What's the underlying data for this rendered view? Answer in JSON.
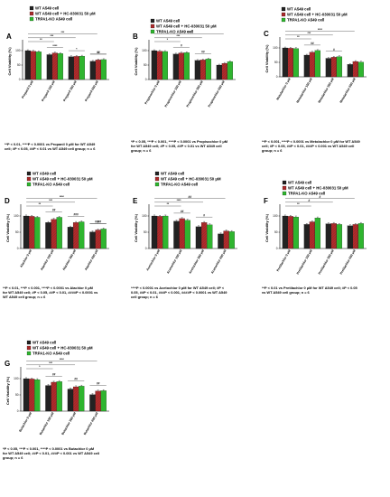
{
  "figure": {
    "colors": {
      "wt": "#222222",
      "hc": "#c0202a",
      "ko": "#2fb52f",
      "wt_hatch": "#5a4b2b",
      "axis": "#000000"
    },
    "legend_labels": [
      "WT A549 cell",
      "WT A549 cell + HC-030031 50 μM",
      "TRPA1-KO A549 cell"
    ]
  },
  "chart_data": [
    {
      "panel": "A",
      "type": "bar",
      "ylabel": "Cell Viability (%)",
      "ylim": [
        0,
        125
      ],
      "yticks": [
        0,
        50,
        100
      ],
      "categories": [
        "Propanil 0 μM",
        "Propanil 150 μM",
        "Propanil 300 μM",
        "Propanil 600 μM"
      ],
      "series": [
        {
          "name": "WT A549 cell",
          "values": [
            100,
            86,
            79,
            63
          ]
        },
        {
          "name": "WT A549 cell + HC-030031 50 μM",
          "values": [
            98,
            92,
            80,
            68
          ]
        },
        {
          "name": "TRPA1-KO A549 cell",
          "values": [
            96,
            90,
            81,
            69
          ]
        }
      ],
      "sig_labels": [
        "**",
        "***",
        "***",
        "****",
        "*",
        "#",
        "##"
      ],
      "caption": "**P < 0.01, ****P < 0.0001 vs Propanil 0 μM for WT A549 cell; #P < 0.05, ##P < 0.01 vs WT A549 cell group; n = 6"
    },
    {
      "panel": "B",
      "type": "bar",
      "ylabel": "Cell Viability (%)",
      "ylim": [
        0,
        125
      ],
      "yticks": [
        0,
        50,
        100
      ],
      "categories": [
        "Propisochlor 0 μM",
        "Propisochlor 150 μM",
        "Propisochlor 300 μM",
        "Propisochlor 600 μM"
      ],
      "series": [
        {
          "name": "WT A549 cell",
          "values": [
            100,
            88,
            66,
            50
          ]
        },
        {
          "name": "WT A549 cell + HC-030031 50 μM",
          "values": [
            98,
            92,
            68,
            56
          ]
        },
        {
          "name": "TRPA1-KO A549 cell",
          "values": [
            97,
            93,
            71,
            62
          ]
        }
      ],
      "sig_labels": [
        "*",
        "***",
        "****",
        "#",
        "##"
      ],
      "caption": "*P < 0.05, ***P < 0.001, ****P < 0.0001 vs Propisochlor 0 μM for WT A549 cell; #P < 0.05, ##P < 0.01 vs WT A549 cell group; n = 6"
    },
    {
      "panel": "C",
      "type": "bar",
      "ylabel": "Cell Viability (%)",
      "ylim": [
        0,
        125
      ],
      "yticks": [
        0,
        50,
        100
      ],
      "categories": [
        "Metolachlor 0 μM",
        "Metolachlor 150 μM",
        "Metolachlor 300 μM",
        "Metolachlor 600 μM"
      ],
      "series": [
        {
          "name": "WT A549 cell",
          "values": [
            100,
            75,
            64,
            43
          ]
        },
        {
          "name": "WT A549 cell + HC-030031 50 μM",
          "values": [
            99,
            85,
            68,
            53
          ]
        },
        {
          "name": "TRPA1-KO A549 cell",
          "values": [
            98,
            91,
            70,
            51
          ]
        }
      ],
      "sig_labels": [
        "**",
        "***",
        "****",
        "##",
        "#"
      ],
      "caption": "**P < 0.001, ****P < 0.0001 vs Metolachlor 0 μM for WT A549 cell; #P < 0.05, ##P < 0.01, ###P < 0.001 vs WT A549 cell group; n = 6"
    },
    {
      "panel": "D",
      "type": "bar",
      "ylabel": "Cell Viability (%)",
      "ylim": [
        0,
        125
      ],
      "yticks": [
        0,
        50,
        100
      ],
      "categories": [
        "Alachlor 0 μM",
        "Alachlor 150 μM",
        "Alachlor 300 μM",
        "Alachlor 600 μM"
      ],
      "series": [
        {
          "name": "WT A549 cell",
          "values": [
            100,
            80,
            66,
            51
          ]
        },
        {
          "name": "WT A549 cell + HC-030031 50 μM",
          "values": [
            99,
            90,
            80,
            57
          ]
        },
        {
          "name": "TRPA1-KO A549 cell",
          "values": [
            96,
            96,
            82,
            60
          ]
        }
      ],
      "sig_labels": [
        "**",
        "***",
        "****",
        "##",
        "###",
        "####",
        "#"
      ],
      "caption": "**P < 0.01, ***P < 0.001, ****P < 0.0001 vs Alachlor 0 μM for WT A549 cell; #P < 0.05, ##P < 0.01, ####P < 0.0001 vs WT A549 cell group; n = 6"
    },
    {
      "panel": "E",
      "type": "bar",
      "ylabel": "Cell Viability (%)",
      "ylim": [
        0,
        125
      ],
      "yticks": [
        0,
        50,
        100
      ],
      "categories": [
        "Acetochlor 0 μM",
        "Acetochlor 150 μM",
        "Acetochlor 300 μM",
        "Acetochlor 600 μM"
      ],
      "series": [
        {
          "name": "WT A549 cell",
          "values": [
            100,
            84,
            67,
            45
          ]
        },
        {
          "name": "WT A549 cell + HC-030031 50 μM",
          "values": [
            99,
            92,
            80,
            54
          ]
        },
        {
          "name": "TRPA1-KO A549 cell",
          "values": [
            100,
            87,
            73,
            52
          ]
        }
      ],
      "sig_labels": [
        "**",
        "****",
        "##",
        "##",
        "#"
      ],
      "caption": "****P < 0.0001 vs Acetochlor 0 μM for WT A549 cell; #P < 0.05, ##P < 0.01, ###P < 0.001, ####P < 0.0001 vs WT A549 cell group; n = 6"
    },
    {
      "panel": "F",
      "type": "bar",
      "ylabel": "Cell Viability (%)",
      "ylim": [
        0,
        125
      ],
      "yticks": [
        0,
        50,
        100
      ],
      "categories": [
        "Pretilachlor 0 μM",
        "Pretilachlor 150 μM",
        "Pretilachlor 300 μM",
        "Pretilachlor 600 μM"
      ],
      "series": [
        {
          "name": "WT A549 cell",
          "values": [
            100,
            74,
            76,
            70
          ]
        },
        {
          "name": "WT A549 cell + HC-030031 50 μM",
          "values": [
            99,
            82,
            77,
            74
          ]
        },
        {
          "name": "TRPA1-KO A549 cell",
          "values": [
            97,
            94,
            74,
            77
          ]
        }
      ],
      "sig_labels": [
        "**",
        "#",
        "#"
      ],
      "caption": "**P < 0.01 vs Pretilachlor 0 μM for WT A549 cell; #P < 0.05 vs WT A549 cell group; n = 6"
    },
    {
      "panel": "G",
      "type": "bar",
      "ylabel": "Cell Viability (%)",
      "ylim": [
        0,
        125
      ],
      "yticks": [
        0,
        50,
        100
      ],
      "categories": [
        "Butachlor 0 μM",
        "Butachlor 150 μM",
        "Butachlor 300 μM",
        "Butachlor 600 μM"
      ],
      "series": [
        {
          "name": "WT A549 cell",
          "values": [
            100,
            79,
            68,
            51
          ]
        },
        {
          "name": "WT A549 cell + HC-030031 50 μM",
          "values": [
            99,
            89,
            75,
            62
          ]
        },
        {
          "name": "TRPA1-KO A549 cell",
          "values": [
            97,
            91,
            77,
            63
          ]
        }
      ],
      "sig_labels": [
        "*",
        "***",
        "****",
        "##",
        "##",
        "##"
      ],
      "caption": "*P < 0.05, ***P < 0.001, ****P < 0.0001 vs Butachlor 0 μM for WT A549 cell; ##P < 0.01, ###P < 0.001 vs WT A549 cell group; n = 6"
    }
  ]
}
